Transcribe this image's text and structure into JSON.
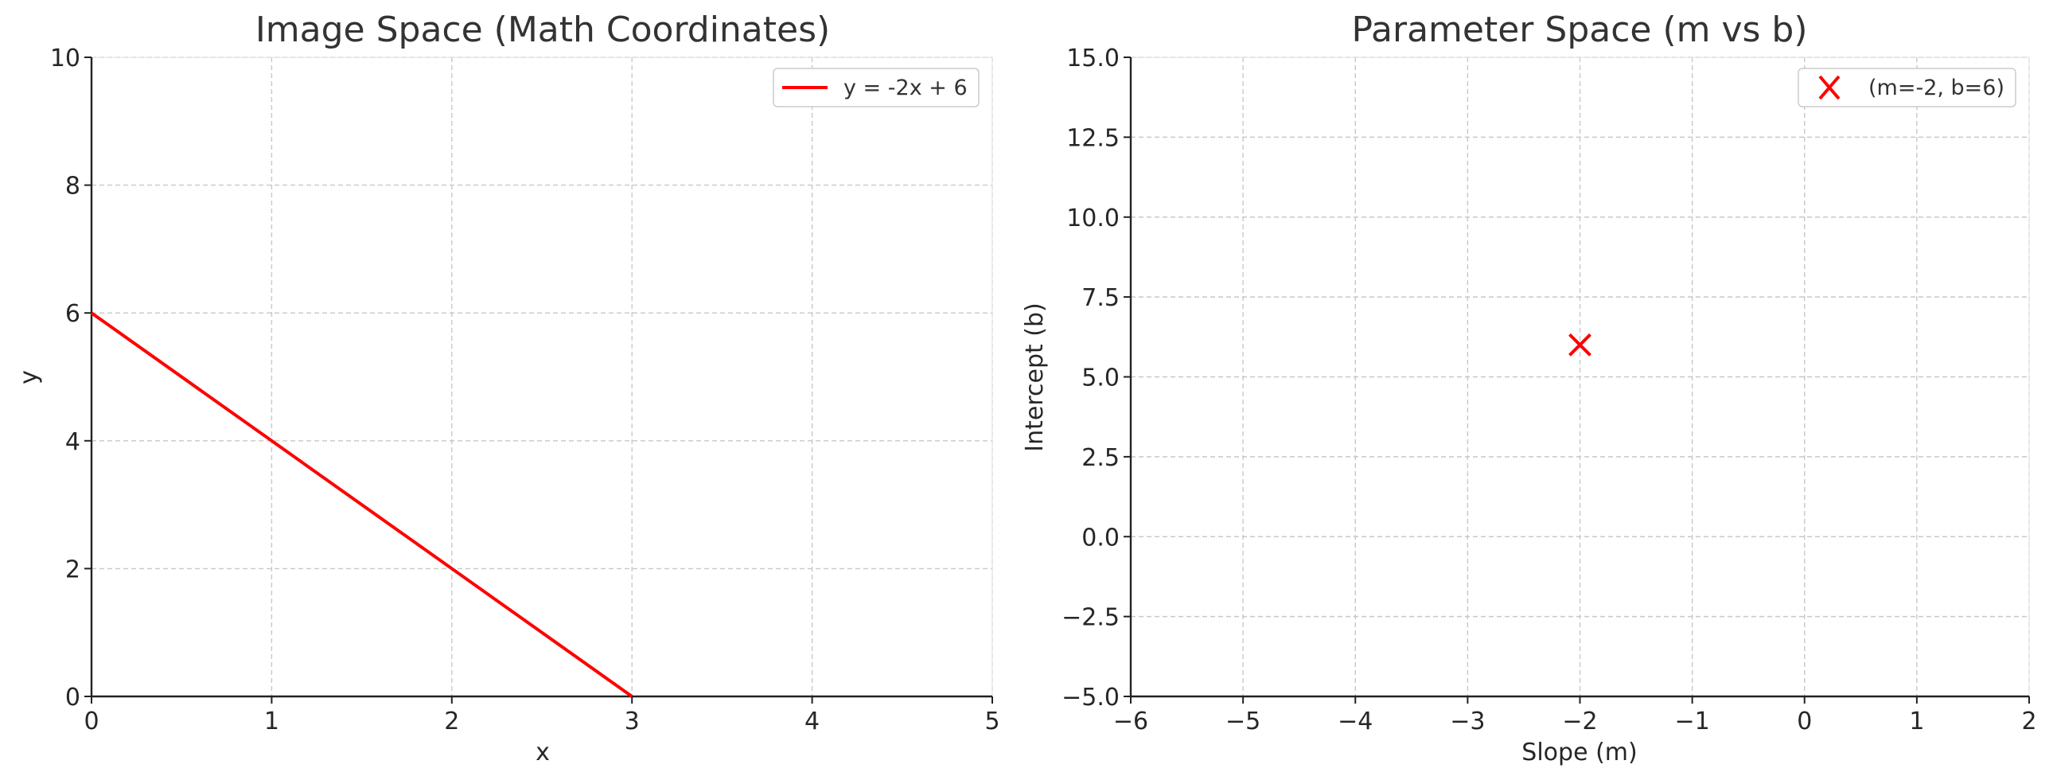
{
  "chart_data": [
    {
      "type": "line",
      "title": "Image Space (Math Coordinates)",
      "xlabel": "x",
      "ylabel": "y",
      "xlim": [
        0,
        5
      ],
      "ylim": [
        0,
        10
      ],
      "xticks": [
        "0",
        "1",
        "2",
        "3",
        "4",
        "5"
      ],
      "yticks": [
        "0",
        "2",
        "4",
        "6",
        "8",
        "10"
      ],
      "grid": true,
      "legend_position": "top-right",
      "series": [
        {
          "name": "y = -2x + 6",
          "color": "#ff0000",
          "x": [
            0,
            3
          ],
          "y": [
            6,
            0
          ]
        }
      ]
    },
    {
      "type": "scatter",
      "title": "Parameter Space (m vs b)",
      "xlabel": "Slope (m)",
      "ylabel": "Intercept (b)",
      "xlim": [
        -6,
        2
      ],
      "ylim": [
        -5,
        15
      ],
      "xticks": [
        "−6",
        "−5",
        "−4",
        "−3",
        "−2",
        "−1",
        "0",
        "1",
        "2"
      ],
      "yticks": [
        "−5.0",
        "−2.5",
        "0.0",
        "2.5",
        "5.0",
        "7.5",
        "10.0",
        "12.5",
        "15.0"
      ],
      "grid": true,
      "legend_position": "top-right",
      "series": [
        {
          "name": "(m=-2, b=6)",
          "color": "#ff0000",
          "marker": "x",
          "x": [
            -2
          ],
          "y": [
            6
          ]
        }
      ]
    }
  ]
}
